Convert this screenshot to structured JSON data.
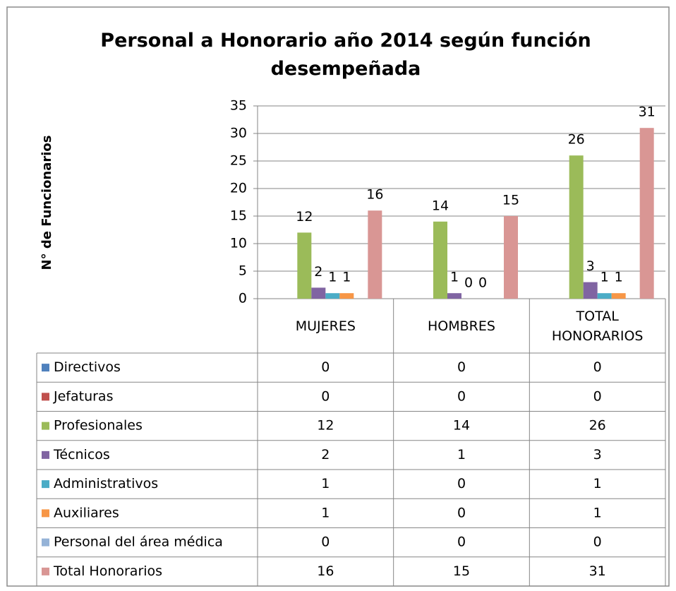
{
  "chart_data": {
    "type": "bar",
    "title": "Personal a Honorario año 2014 según función desempeñada",
    "y_label": "N° de Funcionarios",
    "categories": [
      "MUJERES",
      "HOMBRES",
      "TOTAL HONORARIOS"
    ],
    "series": [
      {
        "name": "Directivos",
        "color": "#4f81bd",
        "values": [
          0,
          0,
          0
        ],
        "data_labels": false
      },
      {
        "name": "Jefaturas",
        "color": "#c0504d",
        "values": [
          0,
          0,
          0
        ],
        "data_labels": false
      },
      {
        "name": "Profesionales",
        "color": "#9bbb59",
        "values": [
          12,
          14,
          26
        ],
        "data_labels": true
      },
      {
        "name": "Técnicos",
        "color": "#8064a2",
        "values": [
          2,
          1,
          3
        ],
        "data_labels": true
      },
      {
        "name": "Administrativos",
        "color": "#4bacc6",
        "values": [
          1,
          0,
          1
        ],
        "data_labels": true
      },
      {
        "name": "Auxiliares",
        "color": "#f79646",
        "values": [
          1,
          0,
          1
        ],
        "data_labels": true
      },
      {
        "name": "Personal del área médica",
        "color": "#95b3d7",
        "values": [
          0,
          0,
          0
        ],
        "data_labels": false
      },
      {
        "name": "Total Honorarios",
        "color": "#d99694",
        "values": [
          16,
          15,
          31
        ],
        "data_labels": true
      }
    ],
    "ylim": [
      0,
      35
    ],
    "yticks": [
      0,
      5,
      10,
      15,
      20,
      25,
      30,
      35
    ],
    "grid": true,
    "data_table": true
  }
}
